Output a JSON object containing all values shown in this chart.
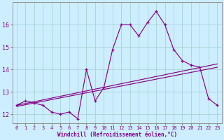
{
  "xlabel": "Windchill (Refroidissement éolien,°C)",
  "bg_color": "#cceeff",
  "line_color": "#880088",
  "x_data": [
    0,
    1,
    2,
    3,
    4,
    5,
    6,
    7,
    8,
    9,
    10,
    11,
    12,
    13,
    14,
    15,
    16,
    17,
    18,
    19,
    20,
    21,
    22,
    23
  ],
  "curve1": [
    12.4,
    12.6,
    12.5,
    12.4,
    12.1,
    12.0,
    12.1,
    11.8,
    14.0,
    12.6,
    13.2,
    14.9,
    16.0,
    16.0,
    15.5,
    16.1,
    16.6,
    16.0,
    14.9,
    14.4,
    14.2,
    14.1,
    12.7,
    12.4
  ],
  "line2_start": 12.4,
  "line2_end": 14.25,
  "line3_start": 12.35,
  "line3_end": 14.1,
  "xlim": [
    -0.5,
    23.5
  ],
  "ylim": [
    11.6,
    17.0
  ],
  "yticks": [
    12,
    13,
    14,
    15,
    16
  ],
  "xticks": [
    0,
    1,
    2,
    3,
    4,
    5,
    6,
    7,
    8,
    9,
    10,
    11,
    12,
    13,
    14,
    15,
    16,
    17,
    18,
    19,
    20,
    21,
    22,
    23
  ],
  "grid_color": "#aad4d4",
  "tick_fontsize": 5.0,
  "xlabel_fontsize": 5.5
}
